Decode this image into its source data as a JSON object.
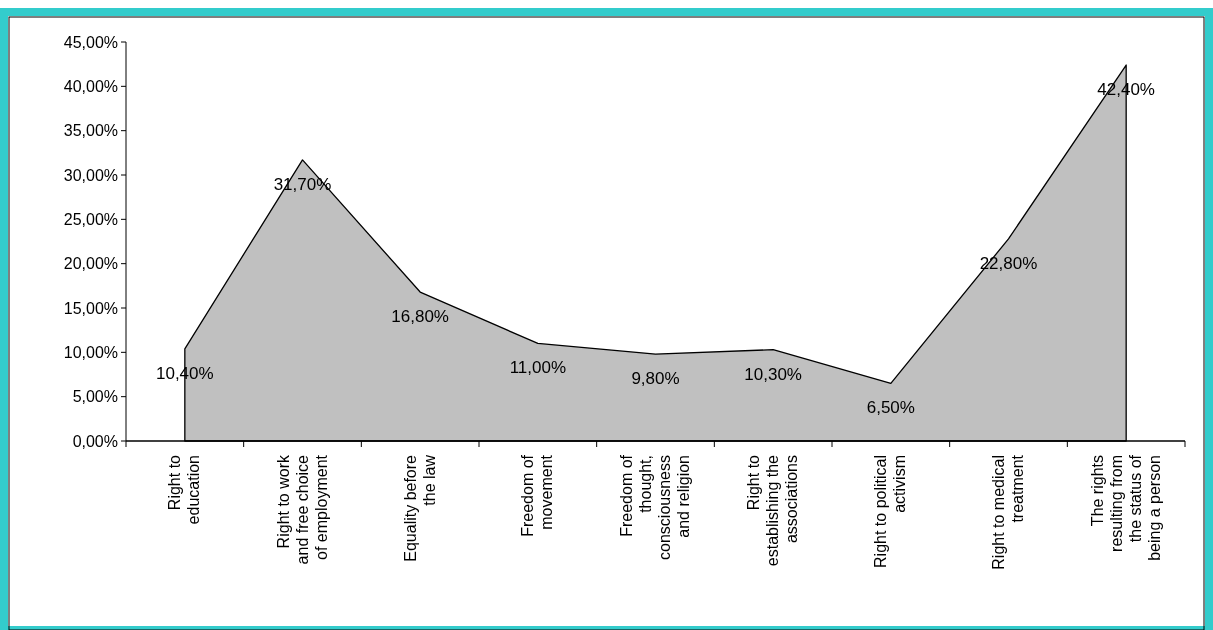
{
  "chart_data": {
    "type": "area",
    "categories": [
      "Right to\neducation",
      "Right to work\nand free choice\nof employment",
      "Equality before\nthe law",
      "Freedom of\nmovement",
      "Freedom of\nthought,\nconsciousness\nand religion",
      "Right to\nestablishing the\nassociations",
      "Right to political\nactivism",
      "Right to medical\ntreatment",
      "The rights\nresulting from\nthe status of\nbeing a person"
    ],
    "series": [
      {
        "color": "#c0c0c0",
        "values": [
          10.4,
          31.7,
          16.8,
          11.0,
          9.8,
          10.3,
          6.5,
          22.8,
          42.4
        ],
        "value_labels": [
          "10,40%",
          "31,70%",
          "16,80%",
          "11,00%",
          "9,80%",
          "10,30%",
          "6,50%",
          "22,80%",
          "42,40%"
        ]
      }
    ],
    "ylim": [
      0,
      45
    ],
    "yticks": [
      {
        "value": 0,
        "label": "0,00%"
      },
      {
        "value": 5,
        "label": "5,00%"
      },
      {
        "value": 10,
        "label": "10,00%"
      },
      {
        "value": 15,
        "label": "15,00%"
      },
      {
        "value": 20,
        "label": "20,00%"
      },
      {
        "value": 25,
        "label": "25,00%"
      },
      {
        "value": 30,
        "label": "30,00%"
      },
      {
        "value": 35,
        "label": "35,00%"
      },
      {
        "value": 40,
        "label": "40,00%"
      },
      {
        "value": 45,
        "label": "45,00%"
      }
    ],
    "grid": false
  }
}
